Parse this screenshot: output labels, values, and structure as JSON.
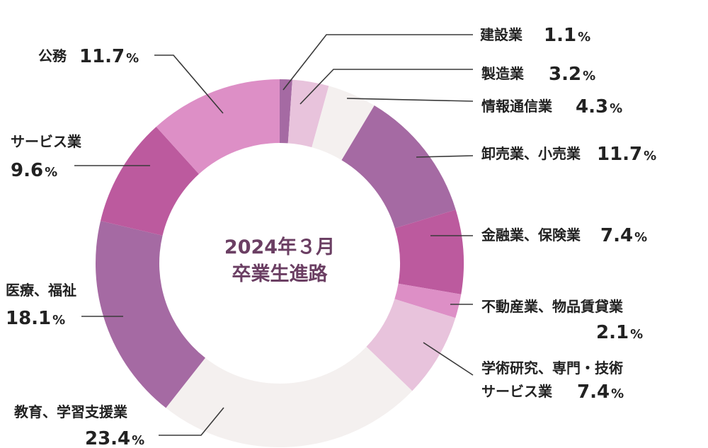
{
  "chart_data": {
    "type": "pie",
    "title_lines": [
      "2024年３月",
      "卒業生進路"
    ],
    "unit": "%",
    "slices": [
      {
        "name": "建設業",
        "value": 1.1,
        "color": "#a56aa3",
        "label_lines": [
          "建設業"
        ]
      },
      {
        "name": "製造業",
        "value": 3.2,
        "color": "#e8c3dc",
        "label_lines": [
          "製造業"
        ]
      },
      {
        "name": "情報通信業",
        "value": 4.3,
        "color": "#f4f0ef",
        "label_lines": [
          "情報通信業"
        ]
      },
      {
        "name": "卸売業、小売業",
        "value": 11.7,
        "color": "#a56aa3",
        "label_lines": [
          "卸売業、小売業"
        ]
      },
      {
        "name": "金融業、保険業",
        "value": 7.4,
        "color": "#bc5a9e",
        "label_lines": [
          "金融業、保険業"
        ]
      },
      {
        "name": "不動産業、物品賃貸業",
        "value": 2.1,
        "color": "#dd8fc6",
        "label_lines": [
          "不動産業、物品賃貸業"
        ]
      },
      {
        "name": "学術研究、専門・技術サービス業",
        "value": 7.4,
        "color": "#e8c3dc",
        "label_lines": [
          "学術研究、専門・技術",
          "サービス業"
        ]
      },
      {
        "name": "教育、学習支援業",
        "value": 23.4,
        "color": "#f4f0ef",
        "label_lines": [
          "教育、学習支援業"
        ]
      },
      {
        "name": "医療、福祉",
        "value": 18.1,
        "color": "#a56aa3",
        "label_lines": [
          "医療、福祉"
        ]
      },
      {
        "name": "サービス業",
        "value": 9.6,
        "color": "#bc5a9e",
        "label_lines": [
          "サービス業"
        ]
      },
      {
        "name": "公務",
        "value": 11.7,
        "color": "#dd8fc6",
        "label_lines": [
          "公務"
        ]
      }
    ]
  }
}
